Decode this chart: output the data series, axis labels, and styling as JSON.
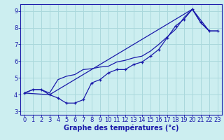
{
  "xlabel": "Graphe des températures (°c)",
  "bg_color": "#cceef0",
  "grid_color": "#aad8dc",
  "line_color": "#1a1aaa",
  "xlim": [
    -0.5,
    23.5
  ],
  "ylim": [
    2.8,
    9.4
  ],
  "xticks": [
    0,
    1,
    2,
    3,
    4,
    5,
    6,
    7,
    8,
    9,
    10,
    11,
    12,
    13,
    14,
    15,
    16,
    17,
    18,
    19,
    20,
    21,
    22,
    23
  ],
  "yticks": [
    3,
    4,
    5,
    6,
    7,
    8,
    9
  ],
  "line1_x": [
    0,
    1,
    2,
    3,
    4,
    5,
    6,
    7,
    8,
    9,
    10,
    11,
    12,
    13,
    14,
    15,
    16,
    17,
    18,
    19,
    20,
    21,
    22,
    23
  ],
  "line1_y": [
    4.1,
    4.3,
    4.3,
    4.0,
    3.8,
    3.5,
    3.5,
    3.7,
    4.7,
    4.9,
    5.3,
    5.5,
    5.5,
    5.8,
    5.95,
    6.3,
    6.7,
    7.4,
    8.1,
    8.5,
    9.1,
    8.3,
    7.8,
    7.8
  ],
  "line2_x": [
    0,
    3,
    20,
    22,
    23
  ],
  "line2_y": [
    4.1,
    4.0,
    9.1,
    7.8,
    7.8
  ],
  "line3_x": [
    0,
    1,
    2,
    3,
    4,
    5,
    6,
    7,
    8,
    9,
    10,
    11,
    12,
    13,
    14,
    15,
    16,
    17,
    18,
    19,
    20,
    21,
    22,
    23
  ],
  "line3_y": [
    4.1,
    4.3,
    4.3,
    4.1,
    4.9,
    5.1,
    5.2,
    5.5,
    5.55,
    5.65,
    5.7,
    5.95,
    6.05,
    6.2,
    6.3,
    6.6,
    7.0,
    7.45,
    7.9,
    8.6,
    9.1,
    8.3,
    7.8,
    7.8
  ],
  "xlabel_fontsize": 7,
  "tick_fontsize": 6
}
